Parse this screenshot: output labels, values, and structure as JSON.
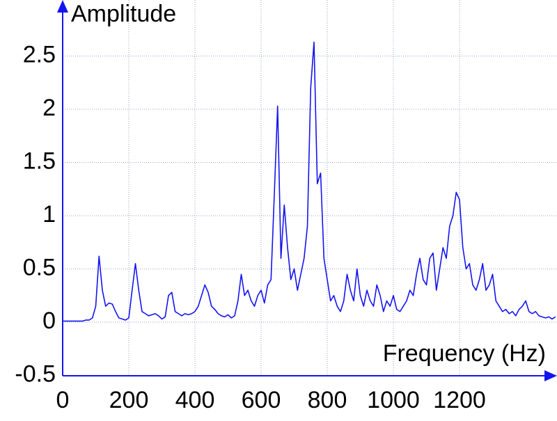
{
  "chart_data": {
    "type": "line",
    "x_label": "Frequency (Hz)",
    "y_label": "Amplitude",
    "xlim": [
      0,
      1490
    ],
    "ylim": [
      -0.5,
      2.95
    ],
    "xticks": [
      0,
      200,
      400,
      600,
      800,
      1000,
      1200
    ],
    "yticks": [
      -0.5,
      0,
      0.5,
      1,
      1.5,
      2,
      2.5
    ],
    "grid": true,
    "x": [
      0,
      10,
      20,
      30,
      40,
      50,
      60,
      70,
      80,
      90,
      100,
      110,
      120,
      130,
      140,
      150,
      160,
      170,
      180,
      190,
      200,
      210,
      220,
      230,
      240,
      250,
      260,
      270,
      280,
      290,
      300,
      310,
      320,
      330,
      340,
      350,
      360,
      370,
      380,
      390,
      400,
      410,
      420,
      430,
      440,
      450,
      460,
      470,
      480,
      490,
      500,
      510,
      520,
      530,
      540,
      550,
      560,
      570,
      580,
      590,
      600,
      610,
      620,
      630,
      640,
      650,
      660,
      670,
      680,
      690,
      700,
      710,
      720,
      730,
      740,
      750,
      760,
      770,
      780,
      790,
      800,
      810,
      820,
      830,
      840,
      850,
      860,
      870,
      880,
      890,
      900,
      910,
      920,
      930,
      940,
      950,
      960,
      970,
      980,
      990,
      1000,
      1010,
      1020,
      1030,
      1040,
      1050,
      1060,
      1070,
      1080,
      1090,
      1100,
      1110,
      1120,
      1130,
      1140,
      1150,
      1160,
      1170,
      1180,
      1190,
      1200,
      1210,
      1220,
      1230,
      1240,
      1250,
      1260,
      1270,
      1280,
      1290,
      1300,
      1310,
      1320,
      1330,
      1340,
      1350,
      1360,
      1370,
      1380,
      1390,
      1400,
      1410,
      1420,
      1430,
      1440,
      1450,
      1460,
      1470,
      1480,
      1490
    ],
    "series": [
      {
        "color": "#1414f0",
        "values": [
          0.01,
          0.01,
          0.01,
          0.01,
          0.01,
          0.01,
          0.01,
          0.02,
          0.02,
          0.04,
          0.15,
          0.62,
          0.3,
          0.15,
          0.18,
          0.17,
          0.1,
          0.04,
          0.03,
          0.02,
          0.04,
          0.3,
          0.55,
          0.3,
          0.1,
          0.08,
          0.06,
          0.07,
          0.08,
          0.06,
          0.03,
          0.05,
          0.25,
          0.28,
          0.1,
          0.08,
          0.06,
          0.08,
          0.07,
          0.08,
          0.1,
          0.15,
          0.25,
          0.35,
          0.28,
          0.15,
          0.12,
          0.08,
          0.06,
          0.05,
          0.07,
          0.04,
          0.06,
          0.2,
          0.45,
          0.25,
          0.3,
          0.2,
          0.15,
          0.25,
          0.3,
          0.18,
          0.35,
          0.4,
          1.2,
          2.03,
          0.6,
          1.1,
          0.7,
          0.4,
          0.5,
          0.3,
          0.45,
          0.6,
          0.9,
          2.2,
          2.63,
          1.3,
          1.4,
          0.6,
          0.4,
          0.2,
          0.25,
          0.15,
          0.1,
          0.2,
          0.45,
          0.3,
          0.2,
          0.5,
          0.25,
          0.15,
          0.3,
          0.2,
          0.15,
          0.35,
          0.25,
          0.1,
          0.2,
          0.15,
          0.25,
          0.12,
          0.1,
          0.15,
          0.2,
          0.3,
          0.25,
          0.45,
          0.6,
          0.4,
          0.35,
          0.6,
          0.65,
          0.3,
          0.5,
          0.7,
          0.6,
          0.9,
          1.0,
          1.22,
          1.15,
          0.7,
          0.5,
          0.55,
          0.35,
          0.3,
          0.4,
          0.55,
          0.3,
          0.35,
          0.45,
          0.2,
          0.15,
          0.1,
          0.12,
          0.08,
          0.1,
          0.06,
          0.12,
          0.15,
          0.2,
          0.1,
          0.08,
          0.1,
          0.06,
          0.05,
          0.04,
          0.05,
          0.03,
          0.05
        ]
      }
    ]
  }
}
